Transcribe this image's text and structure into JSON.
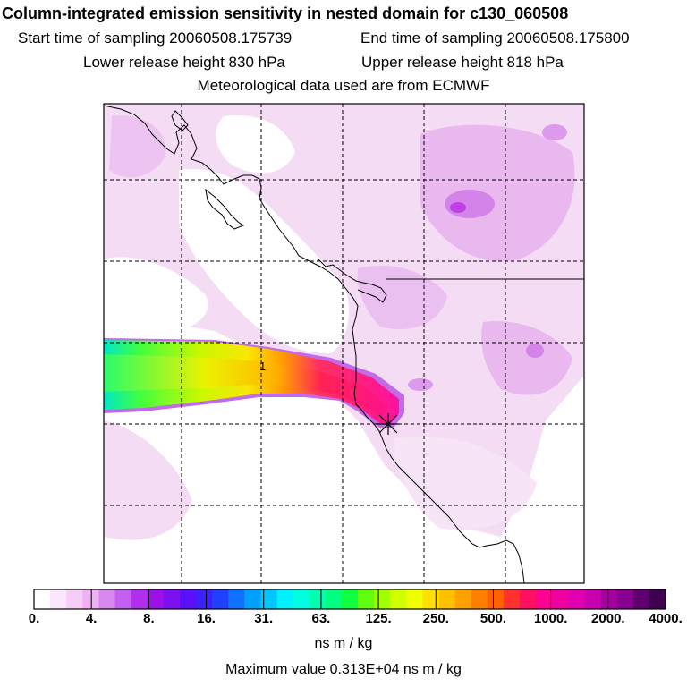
{
  "title": "Column-integrated emission sensitivity in nested domain for c130_060508",
  "sampling": {
    "start": "Start time of sampling 20060508.175739",
    "end": "End time of sampling 20060508.175800"
  },
  "release": {
    "lower": "Lower release height  830 hPa",
    "upper": "Upper release height  818 hPa"
  },
  "met_source": "Meteorological data used are from ECMWF",
  "map": {
    "marker_label": "1",
    "colors": {
      "light_pink": "#f5dcf5",
      "mid_pink": "#e8b8ef",
      "violet": "#d483e8",
      "deep_violet": "#c040e8",
      "plume_magenta": "#ff1aa0",
      "plume_red": "#ff2060",
      "plume_orange": "#ff9a00",
      "plume_yellow": "#f2f000",
      "plume_green": "#40ff40",
      "plume_cyan": "#00e8c8"
    }
  },
  "colorbar": {
    "unit": "ns m / kg",
    "tick_labels": [
      "0.",
      "4.",
      "8.",
      "16.",
      "31.",
      "63.",
      "125.",
      "250.",
      "500.",
      "1000.",
      "2000.",
      "4000."
    ],
    "colors": [
      "#ffffff",
      "#fbe6fb",
      "#f6cdf6",
      "#efb1f3",
      "#d888ee",
      "#c55ff0",
      "#b030ee",
      "#9c10e8",
      "#7c10f0",
      "#5a10f8",
      "#3c20ff",
      "#2040ff",
      "#1070ff",
      "#00a0ff",
      "#00c8ff",
      "#00f0ff",
      "#00ffe0",
      "#00ffb0",
      "#00ff80",
      "#10ff40",
      "#60ff10",
      "#a0ff00",
      "#d0ff00",
      "#f0ff00",
      "#ffe000",
      "#ffc000",
      "#ffa000",
      "#ff8000",
      "#ff6000",
      "#ff3030",
      "#ff1060",
      "#ff0090",
      "#f000a0",
      "#e000b0",
      "#c800b0",
      "#a800a0",
      "#880090",
      "#600070",
      "#400050"
    ]
  },
  "max_value": "Maximum value  0.313E+04 ns m / kg"
}
